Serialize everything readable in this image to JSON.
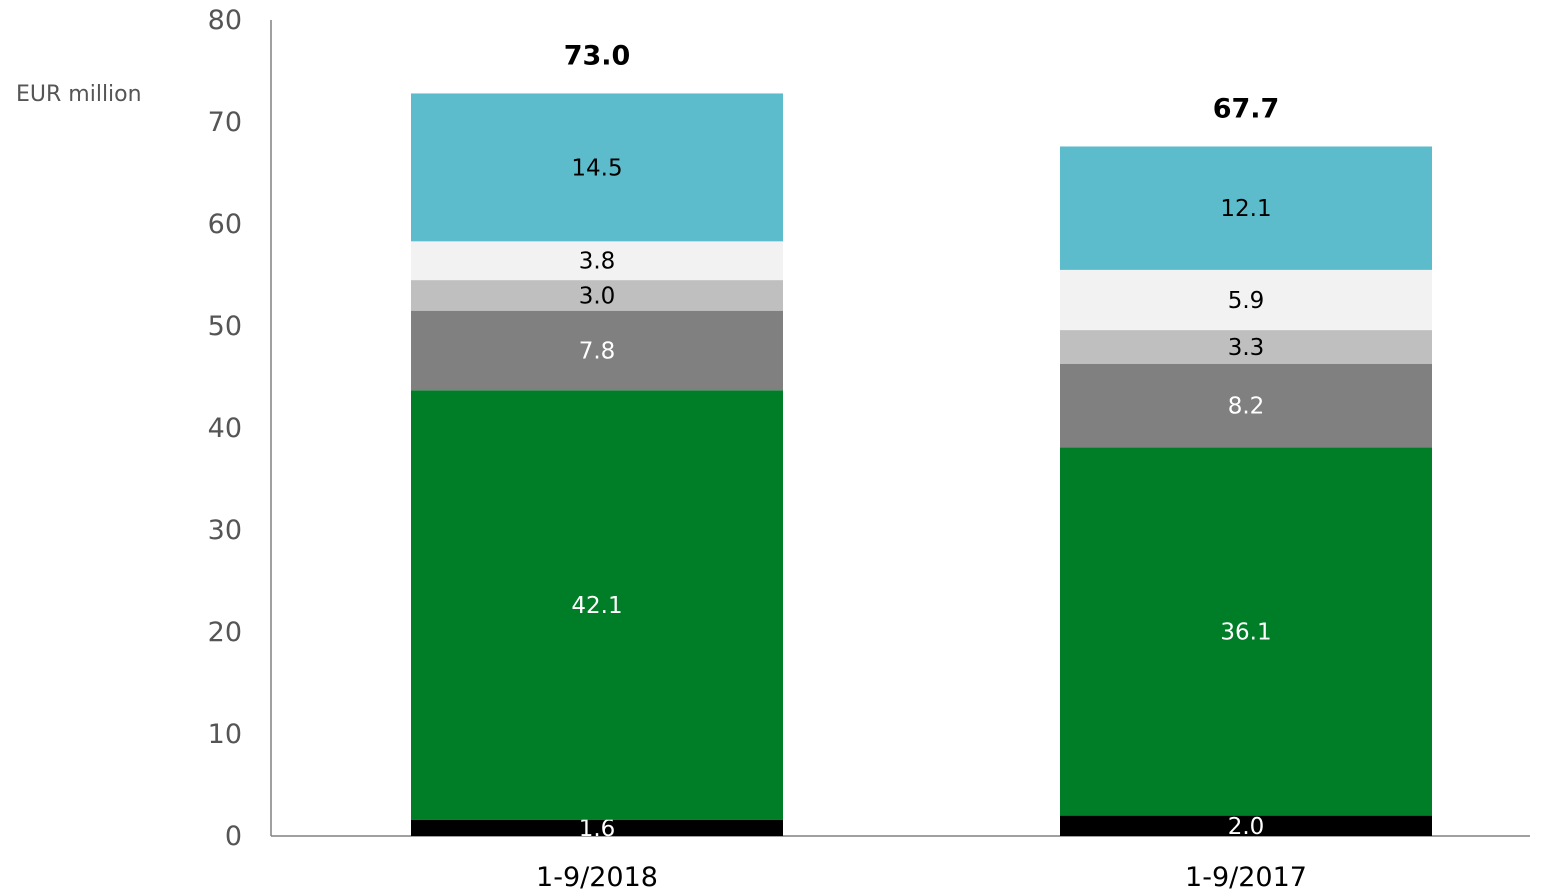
{
  "chart_data": {
    "type": "bar",
    "stacked": true,
    "categories": [
      "1-9/2018",
      "1-9/2017"
    ],
    "series": [
      {
        "values": [
          1.6,
          2.0
        ],
        "color": "#000000",
        "label_color": "#ffffff"
      },
      {
        "values": [
          42.1,
          36.1
        ],
        "color": "#007d27",
        "label_color": "#ffffff"
      },
      {
        "values": [
          7.8,
          8.2
        ],
        "color": "#808080",
        "label_color": "#ffffff"
      },
      {
        "values": [
          3.0,
          3.3
        ],
        "color": "#bfbfbf",
        "label_color": "#000000"
      },
      {
        "values": [
          3.8,
          5.9
        ],
        "color": "#f2f2f2",
        "label_color": "#000000"
      },
      {
        "values": [
          14.5,
          12.1
        ],
        "color": "#5dbccb",
        "label_color": "#000000"
      }
    ],
    "totals": [
      "73.0",
      "67.7"
    ],
    "ylabel": "EUR million",
    "ylim": [
      0,
      80
    ],
    "yticks": [
      0,
      10,
      20,
      30,
      40,
      50,
      60,
      70,
      80
    ],
    "grid": false,
    "legend": "none"
  }
}
